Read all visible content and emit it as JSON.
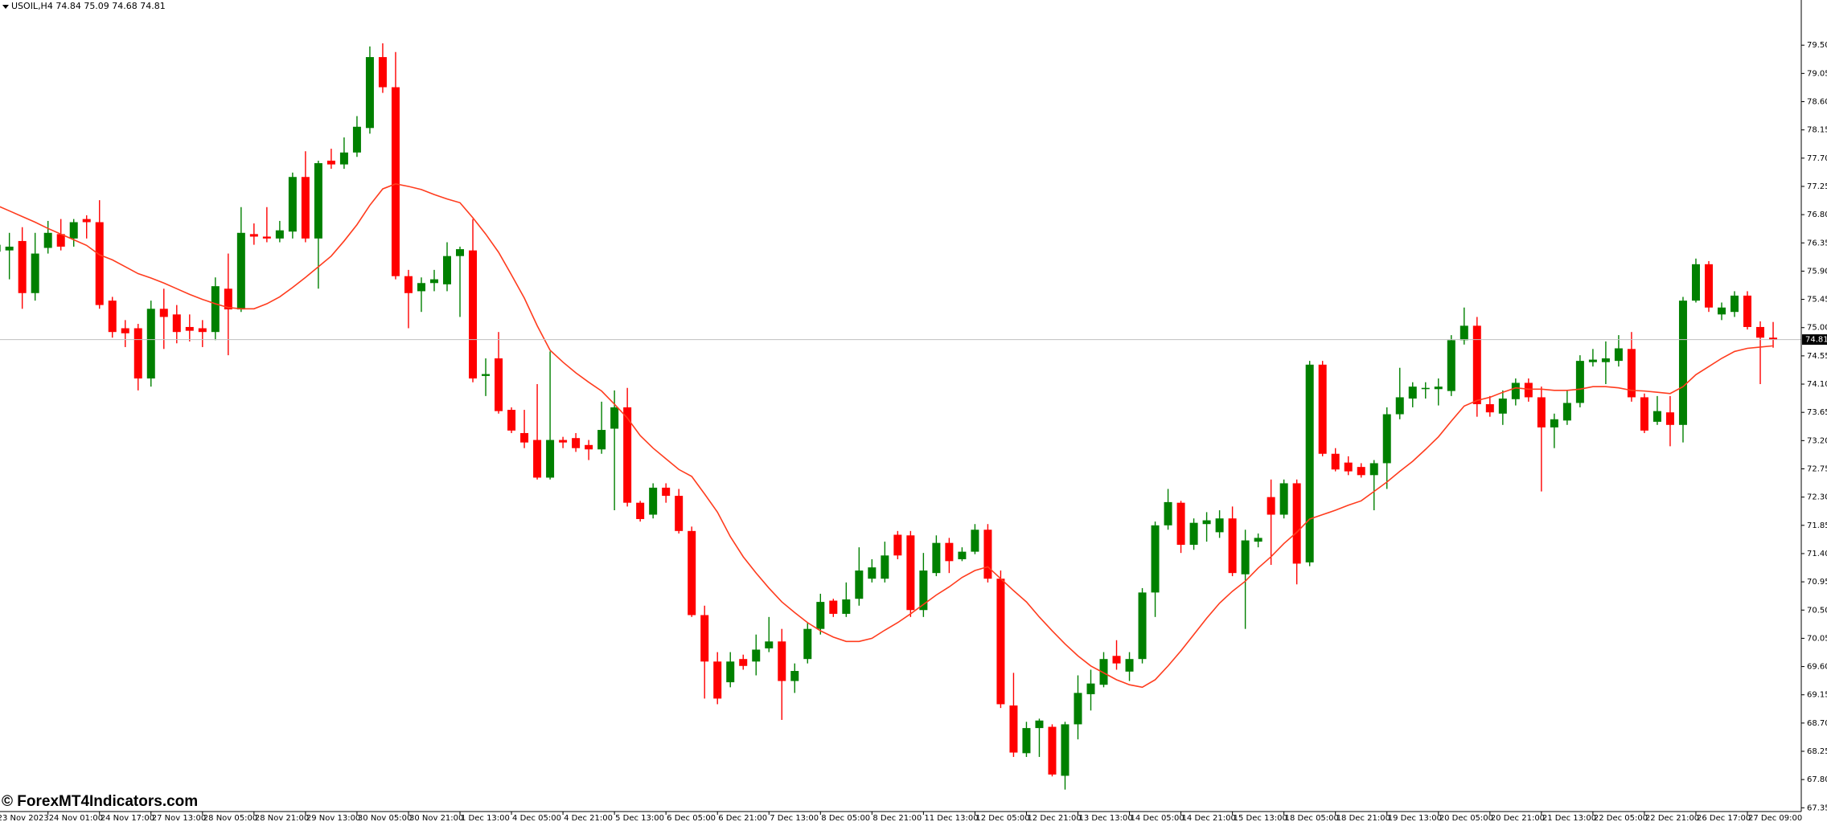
{
  "chart_data": {
    "type": "candlestick",
    "title": "USOIL,H4  74.84 75.09 74.68 74.81",
    "watermark": "© ForexMT4Indicators.com",
    "up_color": "#008000",
    "down_color": "#ff0000",
    "price_line_color": "#c0c0c0",
    "categories": [
      "23 Nov 2023",
      null,
      null,
      null,
      "24 Nov 01:00",
      null,
      null,
      null,
      "24 Nov 17:00",
      null,
      null,
      null,
      "27 Nov 13:00",
      null,
      null,
      null,
      "28 Nov 05:00",
      null,
      null,
      null,
      "28 Nov 21:00",
      null,
      null,
      null,
      "29 Nov 13:00",
      null,
      null,
      null,
      "30 Nov 05:00",
      null,
      null,
      null,
      "30 Nov 21:00",
      null,
      null,
      null,
      "1 Dec 13:00",
      null,
      null,
      null,
      "4 Dec 05:00",
      null,
      null,
      null,
      "4 Dec 21:00",
      null,
      null,
      null,
      "5 Dec 13:00",
      null,
      null,
      null,
      "6 Dec 05:00",
      null,
      null,
      null,
      "6 Dec 21:00",
      null,
      null,
      null,
      "7 Dec 13:00",
      null,
      null,
      null,
      "8 Dec 05:00",
      null,
      null,
      null,
      "8 Dec 21:00",
      null,
      null,
      null,
      "11 Dec 13:00",
      null,
      null,
      null,
      "12 Dec 05:00",
      null,
      null,
      null,
      "12 Dec 21:00",
      null,
      null,
      null,
      "13 Dec 13:00",
      null,
      null,
      null,
      "14 Dec 05:00",
      null,
      null,
      null,
      "14 Dec 21:00",
      null,
      null,
      null,
      "15 Dec 13:00",
      null,
      null,
      null,
      "18 Dec 05:00",
      null,
      null,
      null,
      "18 Dec 21:00",
      null,
      null,
      null,
      "19 Dec 13:00",
      null,
      null,
      null,
      "20 Dec 05:00",
      null,
      null,
      null,
      "20 Dec 21:00",
      null,
      null,
      null,
      "21 Dec 13:00",
      null,
      null,
      null,
      "22 Dec 05:00",
      null,
      null,
      null,
      "22 Dec 21:00",
      null,
      null,
      null,
      "26 Dec 17:00",
      null,
      null,
      null,
      "27 Dec 09:00",
      null,
      null
    ],
    "open": [
      76.21,
      76.23,
      76.38,
      75.55,
      76.27,
      76.49,
      76.42,
      76.73,
      76.68,
      75.43,
      74.99,
      74.99,
      74.19,
      75.3,
      75.21,
      75.01,
      74.99,
      74.93,
      75.62,
      75.29,
      76.49,
      76.45,
      76.42,
      76.53,
      77.4,
      76.42,
      77.66,
      77.6,
      77.79,
      78.18,
      79.31,
      78.83,
      75.82,
      75.58,
      75.71,
      75.69,
      76.14,
      76.23,
      74.23,
      74.51,
      73.69,
      73.32,
      73.21,
      72.61,
      73.21,
      73.24,
      73.13,
      73.06,
      73.39,
      73.73,
      72.21,
      72.02,
      72.45,
      72.32,
      71.76,
      70.42,
      69.68,
      69.35,
      69.72,
      69.68,
      69.89,
      70.0,
      69.37,
      69.72,
      70.2,
      70.65,
      70.44,
      70.68,
      71.0,
      71.0,
      71.7,
      71.69,
      70.5,
      71.09,
      71.57,
      71.31,
      71.43,
      71.78,
      71.0,
      68.98,
      68.22,
      68.62,
      68.64,
      67.86,
      68.68,
      69.16,
      69.31,
      69.77,
      69.52,
      69.72,
      70.78,
      71.85,
      72.21,
      71.54,
      71.87,
      71.74,
      71.96,
      71.07,
      71.59,
      72.3,
      72.02,
      72.52,
      71.26,
      74.41,
      72.99,
      72.85,
      72.78,
      72.65,
      72.84,
      73.62,
      73.87,
      74.02,
      74.02,
      73.99,
      74.8,
      75.03,
      73.78,
      73.63,
      73.86,
      74.12,
      73.89,
      73.41,
      73.52,
      73.8,
      74.45,
      74.45,
      74.47,
      74.66,
      73.89,
      73.5,
      73.65,
      73.45,
      75.43,
      76.01,
      75.21,
      75.25,
      75.51,
      75.01,
      74.84
    ],
    "high": [
      76.42,
      76.51,
      76.6,
      76.51,
      76.7,
      76.73,
      76.73,
      76.79,
      77.03,
      75.49,
      75.12,
      75.06,
      75.43,
      75.62,
      75.36,
      75.21,
      75.12,
      75.8,
      76.18,
      76.92,
      76.66,
      76.92,
      76.7,
      77.47,
      77.81,
      77.66,
      77.85,
      78.03,
      78.37,
      79.48,
      79.53,
      79.39,
      75.92,
      75.8,
      75.92,
      76.36,
      76.29,
      76.73,
      74.51,
      74.93,
      73.73,
      73.69,
      74.1,
      74.62,
      73.26,
      73.32,
      73.21,
      73.82,
      74.0,
      74.04,
      72.24,
      72.52,
      72.52,
      72.43,
      71.83,
      70.57,
      69.83,
      69.83,
      69.79,
      70.11,
      70.39,
      70.2,
      69.65,
      70.3,
      70.76,
      70.68,
      70.94,
      71.5,
      71.31,
      71.59,
      71.76,
      71.76,
      71.41,
      71.69,
      71.65,
      71.5,
      71.87,
      71.87,
      71.13,
      69.5,
      68.72,
      68.77,
      68.68,
      68.72,
      69.46,
      69.55,
      69.83,
      70.02,
      69.83,
      70.85,
      71.91,
      72.43,
      72.24,
      71.96,
      72.06,
      72.09,
      72.15,
      71.78,
      71.72,
      72.58,
      72.58,
      72.58,
      74.47,
      74.47,
      73.08,
      72.95,
      72.84,
      72.89,
      73.73,
      74.36,
      74.13,
      74.13,
      74.19,
      74.88,
      75.32,
      75.17,
      73.91,
      74.0,
      74.19,
      74.19,
      74.06,
      73.63,
      74.0,
      74.56,
      74.66,
      74.78,
      74.88,
      74.93,
      73.95,
      73.91,
      73.91,
      75.49,
      76.1,
      76.06,
      75.4,
      75.58,
      75.58,
      75.1,
      75.09
    ],
    "low": [
      76.14,
      75.77,
      75.3,
      75.43,
      76.18,
      76.23,
      76.29,
      76.42,
      75.3,
      74.84,
      74.69,
      74.0,
      74.06,
      74.66,
      74.75,
      74.78,
      74.69,
      74.8,
      74.56,
      75.25,
      76.32,
      76.36,
      76.36,
      76.42,
      76.36,
      75.62,
      77.53,
      77.53,
      77.72,
      78.09,
      78.74,
      75.77,
      74.99,
      75.25,
      75.58,
      75.58,
      75.17,
      74.13,
      73.91,
      73.63,
      73.32,
      73.08,
      72.58,
      72.58,
      73.08,
      73.02,
      72.89,
      72.99,
      72.09,
      72.15,
      71.91,
      71.96,
      72.21,
      71.72,
      70.39,
      69.09,
      69.0,
      69.27,
      69.55,
      69.46,
      69.83,
      68.75,
      69.18,
      69.65,
      70.11,
      70.39,
      70.39,
      70.57,
      70.94,
      70.94,
      71.31,
      70.39,
      70.39,
      71.04,
      71.09,
      71.28,
      71.39,
      70.94,
      68.94,
      68.16,
      68.16,
      68.16,
      67.85,
      67.64,
      68.44,
      68.9,
      69.27,
      69.55,
      69.37,
      69.65,
      70.39,
      71.78,
      71.41,
      71.46,
      71.59,
      71.65,
      71.04,
      70.2,
      71.5,
      71.22,
      71.96,
      70.91,
      71.2,
      72.95,
      72.71,
      72.65,
      72.61,
      72.09,
      72.43,
      73.54,
      73.73,
      73.87,
      73.76,
      73.91,
      74.73,
      73.58,
      73.58,
      73.45,
      73.76,
      73.82,
      72.39,
      73.08,
      73.45,
      73.73,
      74.38,
      74.1,
      74.38,
      73.82,
      73.32,
      73.45,
      73.11,
      73.17,
      75.4,
      75.25,
      75.12,
      75.17,
      74.97,
      74.1,
      74.68
    ],
    "close": [
      76.32,
      76.29,
      75.55,
      76.18,
      76.51,
      76.29,
      76.68,
      76.68,
      75.36,
      74.93,
      74.91,
      74.19,
      75.3,
      75.17,
      74.93,
      74.95,
      74.93,
      75.66,
      75.29,
      76.51,
      76.45,
      76.42,
      76.55,
      77.4,
      76.42,
      77.62,
      77.6,
      77.79,
      78.2,
      79.31,
      78.83,
      75.82,
      75.55,
      75.71,
      75.77,
      76.14,
      76.25,
      74.19,
      74.26,
      73.67,
      73.36,
      73.17,
      72.61,
      73.21,
      73.17,
      73.08,
      73.06,
      73.37,
      73.73,
      72.21,
      71.95,
      72.45,
      72.32,
      71.76,
      70.42,
      69.68,
      69.09,
      69.68,
      69.61,
      69.87,
      70.0,
      69.37,
      69.53,
      70.2,
      70.63,
      70.44,
      70.67,
      71.13,
      71.18,
      71.37,
      71.37,
      70.5,
      71.13,
      71.57,
      71.28,
      71.43,
      71.78,
      71.0,
      69.0,
      68.23,
      68.62,
      68.74,
      67.88,
      68.68,
      69.18,
      69.33,
      69.72,
      69.65,
      69.72,
      70.78,
      71.85,
      72.22,
      71.54,
      71.89,
      71.93,
      71.96,
      71.09,
      71.61,
      71.65,
      72.02,
      72.52,
      71.24,
      74.41,
      72.99,
      72.74,
      72.71,
      72.65,
      72.84,
      73.62,
      73.89,
      74.06,
      74.04,
      74.06,
      74.8,
      75.03,
      73.78,
      73.65,
      73.87,
      74.12,
      73.89,
      73.41,
      73.54,
      73.8,
      74.47,
      74.49,
      74.51,
      74.67,
      73.89,
      73.36,
      73.67,
      73.45,
      75.43,
      76.01,
      75.32,
      75.32,
      75.51,
      75.01,
      74.84,
      74.81
    ],
    "line": {
      "color": "#ff3c1e",
      "values": [
        76.95,
        76.86,
        76.77,
        76.68,
        76.58,
        76.49,
        76.4,
        76.31,
        76.16,
        76.08,
        75.97,
        75.86,
        75.79,
        75.71,
        75.62,
        75.53,
        75.45,
        75.38,
        75.32,
        75.3,
        75.3,
        75.38,
        75.49,
        75.64,
        75.8,
        75.97,
        76.14,
        76.38,
        76.64,
        76.95,
        77.21,
        77.29,
        77.25,
        77.2,
        77.12,
        77.05,
        76.99,
        76.75,
        76.49,
        76.2,
        75.84,
        75.47,
        75.03,
        74.64,
        74.45,
        74.28,
        74.13,
        73.99,
        73.78,
        73.56,
        73.28,
        73.08,
        72.91,
        72.74,
        72.63,
        72.35,
        72.06,
        71.67,
        71.35,
        71.09,
        70.85,
        70.63,
        70.46,
        70.3,
        70.17,
        70.07,
        70.0,
        70.0,
        70.05,
        70.18,
        70.3,
        70.44,
        70.59,
        70.74,
        70.87,
        71.02,
        71.13,
        71.19,
        71.0,
        70.81,
        70.63,
        70.39,
        70.17,
        69.96,
        69.77,
        69.61,
        69.5,
        69.39,
        69.31,
        69.27,
        69.39,
        69.61,
        69.85,
        70.11,
        70.37,
        70.61,
        70.8,
        70.96,
        71.17,
        71.35,
        71.56,
        71.74,
        71.95,
        72.02,
        72.09,
        72.17,
        72.24,
        72.39,
        72.54,
        72.71,
        72.87,
        73.06,
        73.26,
        73.51,
        73.75,
        73.84,
        73.89,
        73.97,
        74.04,
        74.02,
        74.02,
        74.0,
        74.0,
        74.02,
        74.06,
        74.06,
        74.04,
        74.0,
        73.99,
        73.97,
        73.95,
        74.06,
        74.25,
        74.38,
        74.51,
        74.62,
        74.67,
        74.69,
        74.71
      ]
    },
    "ylim": [
      67.29,
      80.13
    ],
    "yticks": [
      {
        "value": 79.5,
        "label": "79.50"
      },
      79.05,
      {
        "value": 78.6,
        "label": "78.60"
      },
      78.15,
      {
        "value": 77.7,
        "label": "77.70"
      },
      77.25,
      {
        "value": 76.8,
        "label": "76.80"
      },
      76.35,
      {
        "value": 75.9,
        "label": "75.90"
      },
      75.45,
      {
        "value": 75,
        "label": "75.00"
      },
      74.55,
      {
        "value": 74.1,
        "label": "74.10"
      },
      73.65,
      {
        "value": 73.2,
        "label": "73.20"
      },
      72.75,
      {
        "value": 72.3,
        "label": "72.30"
      },
      71.85,
      {
        "value": 71.4,
        "label": "71.40"
      },
      70.95,
      {
        "value": 70.5,
        "label": "70.50"
      },
      70.05,
      {
        "value": 69.6,
        "label": "69.60"
      },
      69.15,
      {
        "value": 68.7,
        "label": "68.70"
      },
      68.25,
      {
        "value": 67.8,
        "label": "67.80"
      },
      67.35
    ]
  }
}
